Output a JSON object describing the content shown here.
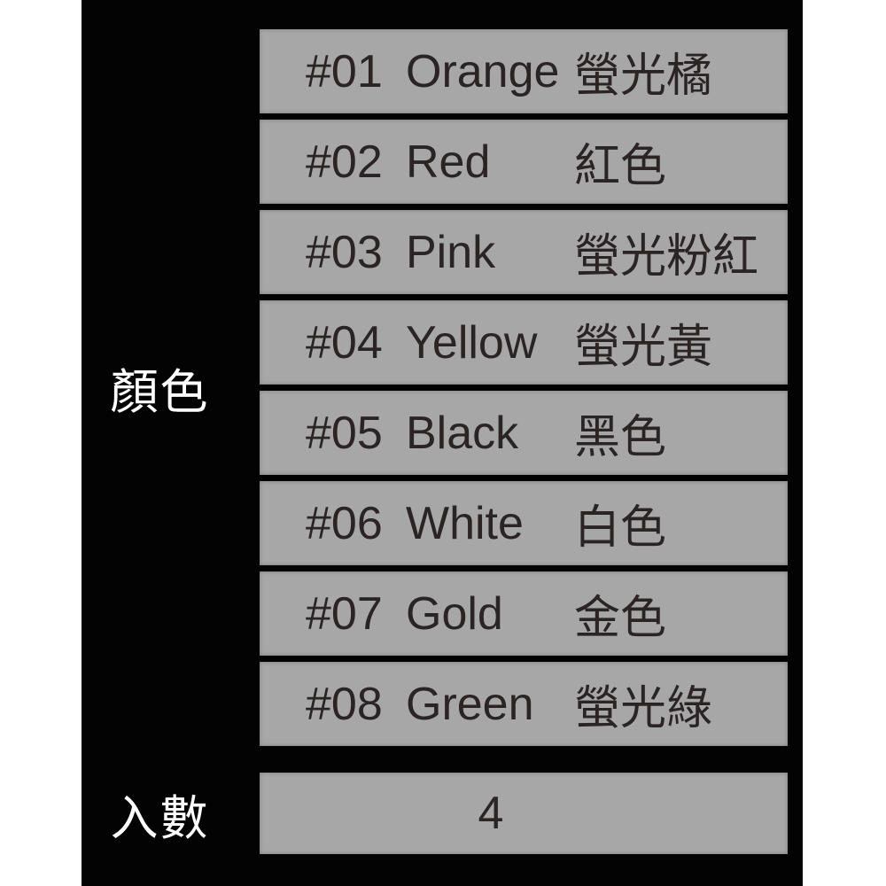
{
  "labels": {
    "color": "顏色",
    "quantity": "入數"
  },
  "quantity": {
    "value": "4"
  },
  "rows": [
    {
      "id": "#01",
      "name": "Orange",
      "zh": "螢光橘"
    },
    {
      "id": "#02",
      "name": "Red",
      "zh": "紅色"
    },
    {
      "id": "#03",
      "name": "Pink",
      "zh": "螢光粉紅"
    },
    {
      "id": "#04",
      "name": "Yellow",
      "zh": "螢光黃"
    },
    {
      "id": "#05",
      "name": "Black",
      "zh": "黑色"
    },
    {
      "id": "#06",
      "name": "White",
      "zh": "白色"
    },
    {
      "id": "#07",
      "name": "Gold",
      "zh": "金色"
    },
    {
      "id": "#08",
      "name": "Green",
      "zh": "螢光綠"
    }
  ],
  "colors": {
    "page_bg": "#ffffff",
    "panel_bg": "#030303",
    "row_bg": "#a7a7a7",
    "row_text": "#2b2424",
    "label_text": "#ffffff"
  }
}
